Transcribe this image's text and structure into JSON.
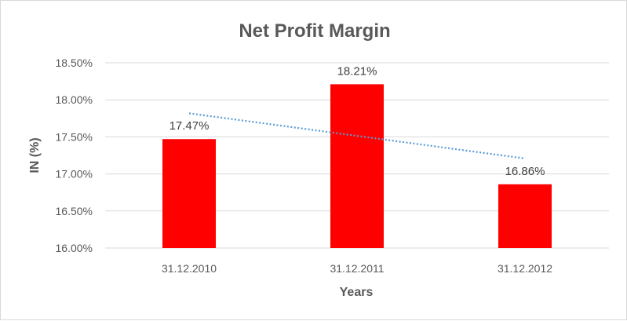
{
  "chart_data": {
    "type": "bar",
    "title": "Net Profit Margin",
    "xlabel": "Years",
    "ylabel": "IN (%)",
    "categories": [
      "31.12.2010",
      "31.12.2011",
      "31.12.2012"
    ],
    "values": [
      17.47,
      18.21,
      16.86
    ],
    "data_labels": [
      "17.47%",
      "18.21%",
      "16.86%"
    ],
    "ylim": [
      16.0,
      18.5
    ],
    "yticks": [
      16.0,
      16.5,
      17.0,
      17.5,
      18.0,
      18.5
    ],
    "ytick_labels": [
      "16.00%",
      "16.50%",
      "17.00%",
      "17.50%",
      "18.00%",
      "18.50%"
    ],
    "grid": true,
    "legend": "none",
    "trendline": {
      "type": "linear",
      "style": "dotted"
    },
    "colors": {
      "bar": "#ff0000",
      "trendline": "#5b9bd5",
      "grid": "#d9d9d9",
      "text": "#595959"
    }
  }
}
